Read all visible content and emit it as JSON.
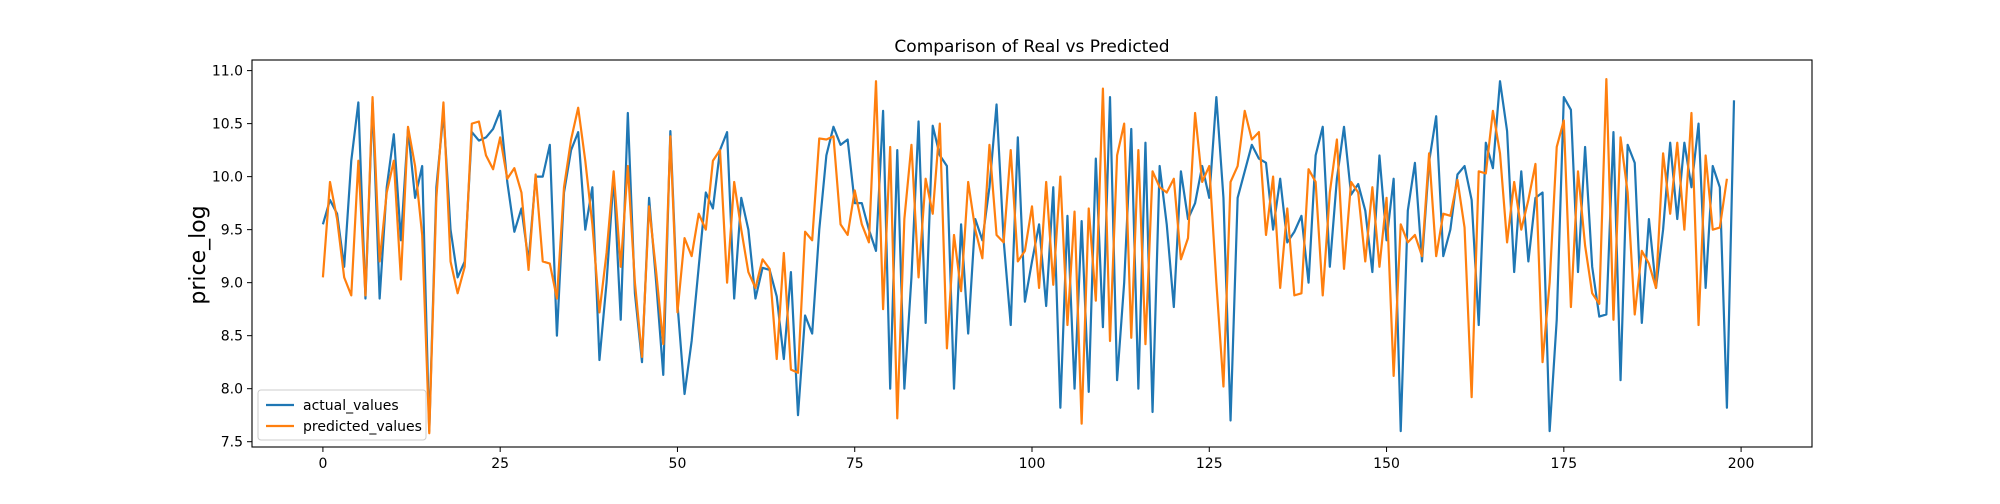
{
  "chart_data": {
    "type": "line",
    "title": "Comparison of Real vs Predicted",
    "xlabel": "",
    "ylabel": "price_log",
    "xlim": [
      -10,
      210
    ],
    "ylim": [
      7.45,
      11.1
    ],
    "xticks": [
      0,
      25,
      50,
      75,
      100,
      125,
      150,
      175,
      200
    ],
    "yticks": [
      7.5,
      8.0,
      8.5,
      9.0,
      9.5,
      10.0,
      10.5,
      11.0
    ],
    "ytick_labels": [
      "7.5",
      "8.0",
      "8.5",
      "9.0",
      "9.5",
      "10.0",
      "10.5",
      "11.0"
    ],
    "grid": false,
    "legend_position": "lower-left",
    "colors": {
      "actual_values": "#1f77b4",
      "predicted_values": "#ff7f0e"
    },
    "series": [
      {
        "name": "actual_values",
        "values": [
          9.55,
          9.78,
          9.65,
          9.15,
          10.15,
          10.7,
          8.85,
          10.7,
          8.85,
          9.9,
          10.4,
          9.4,
          10.45,
          9.8,
          10.1,
          7.6,
          9.9,
          10.6,
          9.5,
          9.05,
          9.2,
          10.42,
          10.34,
          10.37,
          10.45,
          10.62,
          9.95,
          9.48,
          9.7,
          9.2,
          10.0,
          10.0,
          10.3,
          8.5,
          9.85,
          10.25,
          10.42,
          9.5,
          9.9,
          8.27,
          9.0,
          10.0,
          8.65,
          10.6,
          8.9,
          8.25,
          9.8,
          9.0,
          8.13,
          10.43,
          8.8,
          7.95,
          8.45,
          9.15,
          9.85,
          9.7,
          10.25,
          10.42,
          8.85,
          9.8,
          9.5,
          8.85,
          9.14,
          9.12,
          8.87,
          8.28,
          9.1,
          7.75,
          8.69,
          8.52,
          9.5,
          10.2,
          10.47,
          10.3,
          10.35,
          9.75,
          9.75,
          9.5,
          9.3,
          10.62,
          8.0,
          10.25,
          8.0,
          9.05,
          10.52,
          8.62,
          10.48,
          10.2,
          10.1,
          8.0,
          9.55,
          8.52,
          9.6,
          9.4,
          9.9,
          10.68,
          9.4,
          8.6,
          10.37,
          8.82,
          9.2,
          9.55,
          8.78,
          9.9,
          7.82,
          9.63,
          8.0,
          9.58,
          7.97,
          10.17,
          8.58,
          10.75,
          8.08,
          9.0,
          10.45,
          8.0,
          10.32,
          7.78,
          10.1,
          9.55,
          8.77,
          10.05,
          9.6,
          9.75,
          10.1,
          9.8,
          10.75,
          9.8,
          7.7,
          9.8,
          10.05,
          10.3,
          10.17,
          10.13,
          9.5,
          9.98,
          9.38,
          9.48,
          9.63,
          9.0,
          10.2,
          10.47,
          9.15,
          9.98,
          10.47,
          9.83,
          9.93,
          9.68,
          9.1,
          10.2,
          9.4,
          9.98,
          7.6,
          9.68,
          10.13,
          9.2,
          10.14,
          10.57,
          9.25,
          9.5,
          10.02,
          10.1,
          9.78,
          8.6,
          10.32,
          10.08,
          10.9,
          10.43,
          9.1,
          10.05,
          9.2,
          9.8,
          9.85,
          7.6,
          8.65,
          10.75,
          10.63,
          9.1,
          10.28,
          9.15,
          8.68,
          8.7,
          10.42,
          8.08,
          10.3,
          10.13,
          8.62,
          9.6,
          8.95,
          9.5,
          10.32,
          9.6,
          10.32,
          9.9,
          10.5,
          8.95,
          10.1,
          9.9,
          7.82,
          10.72
        ]
      },
      {
        "name": "predicted_values",
        "values": [
          9.05,
          9.95,
          9.6,
          9.05,
          8.88,
          10.15,
          8.88,
          10.75,
          9.2,
          9.85,
          10.15,
          9.03,
          10.47,
          10.1,
          9.45,
          7.58,
          9.8,
          10.7,
          9.2,
          8.9,
          9.15,
          10.5,
          10.52,
          10.2,
          10.07,
          10.37,
          9.98,
          10.08,
          9.85,
          9.12,
          10.02,
          9.2,
          9.18,
          8.85,
          9.9,
          10.35,
          10.65,
          10.15,
          9.55,
          8.72,
          9.28,
          10.05,
          9.15,
          10.1,
          9.0,
          8.3,
          9.72,
          9.1,
          8.42,
          10.38,
          8.72,
          9.42,
          9.25,
          9.65,
          9.5,
          10.15,
          10.25,
          9.0,
          9.95,
          9.5,
          9.1,
          8.95,
          9.22,
          9.13,
          8.28,
          9.28,
          8.18,
          8.15,
          9.48,
          9.4,
          10.36,
          10.35,
          10.38,
          9.55,
          9.45,
          9.87,
          9.55,
          9.38,
          10.9,
          8.75,
          10.28,
          7.72,
          9.6,
          10.3,
          9.05,
          9.98,
          9.65,
          10.5,
          8.38,
          9.45,
          8.92,
          9.95,
          9.5,
          9.23,
          10.3,
          9.45,
          9.38,
          10.25,
          9.2,
          9.3,
          9.72,
          8.95,
          9.95,
          8.98,
          10.0,
          8.6,
          9.67,
          7.67,
          9.7,
          8.83,
          10.83,
          8.45,
          10.2,
          10.5,
          8.48,
          10.25,
          8.42,
          10.05,
          9.9,
          9.85,
          9.98,
          9.22,
          9.42,
          10.6,
          9.95,
          10.1,
          9.0,
          8.02,
          9.95,
          10.1,
          10.62,
          10.35,
          10.42,
          9.45,
          10.0,
          8.95,
          9.7,
          8.88,
          8.9,
          10.07,
          9.95,
          8.88,
          9.85,
          10.35,
          9.13,
          9.95,
          9.85,
          9.2,
          9.9,
          9.15,
          9.8,
          8.12,
          9.55,
          9.38,
          9.45,
          9.25,
          10.22,
          9.25,
          9.65,
          9.63,
          9.97,
          9.52,
          7.92,
          10.05,
          10.03,
          10.62,
          10.22,
          9.38,
          9.95,
          9.5,
          9.78,
          10.12,
          8.25,
          9.0,
          10.28,
          10.53,
          8.77,
          10.05,
          9.35,
          8.9,
          8.8,
          10.92,
          8.65,
          10.37,
          9.85,
          8.7,
          9.3,
          9.18,
          8.95,
          10.22,
          9.65,
          10.32,
          9.5,
          10.6,
          8.6,
          10.2,
          9.5,
          9.52,
          9.98
        ]
      }
    ]
  }
}
